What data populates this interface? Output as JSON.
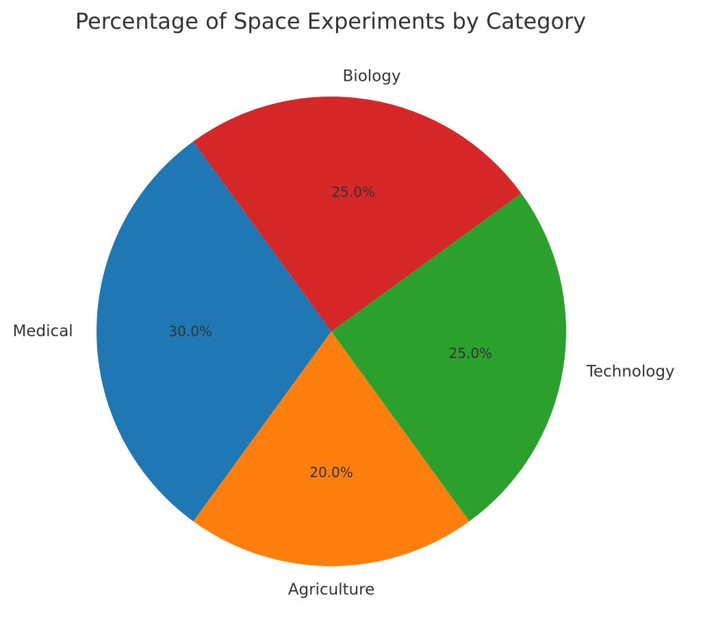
{
  "chart_data": {
    "type": "pie",
    "title": "Percentage of Space Experiments by Category",
    "slices": [
      {
        "label": "Medical",
        "value": 30.0,
        "pct_label": "30.0%",
        "color": "#1f77b4"
      },
      {
        "label": "Agriculture",
        "value": 20.0,
        "pct_label": "20.0%",
        "color": "#ff7f0e"
      },
      {
        "label": "Technology",
        "value": 25.0,
        "pct_label": "25.0%",
        "color": "#2ca02c"
      },
      {
        "label": "Biology",
        "value": 25.0,
        "pct_label": "25.0%",
        "color": "#d62728"
      }
    ]
  }
}
